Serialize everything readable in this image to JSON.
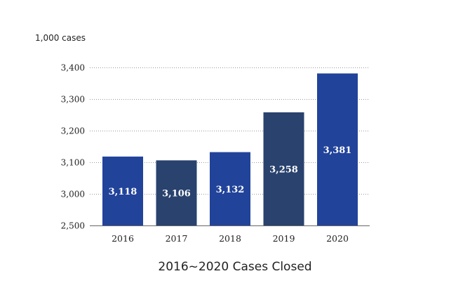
{
  "chart_data": {
    "type": "bar",
    "title": "2016~2020 Cases Closed",
    "ylabel": "1,000 cases",
    "xlabel": "",
    "categories": [
      "2016",
      "2017",
      "2018",
      "2019",
      "2020"
    ],
    "values": [
      3118,
      3106,
      3132,
      3258,
      3381
    ],
    "value_labels": [
      "3,118",
      "3,106",
      "3,132",
      "3,258",
      "3,381"
    ],
    "y_ticks": [
      2500,
      3000,
      3100,
      3200,
      3300,
      3400
    ],
    "y_tick_labels": [
      "2,500",
      "3,000",
      "3,100",
      "3,200",
      "3,300",
      "3,400"
    ],
    "y_axis_break": "broken axis between 2,500 and 3,000",
    "grid": "horizontal dotted",
    "bar_colors": [
      "#21439a",
      "#29426e",
      "#21439a",
      "#29426e",
      "#21439a"
    ]
  }
}
